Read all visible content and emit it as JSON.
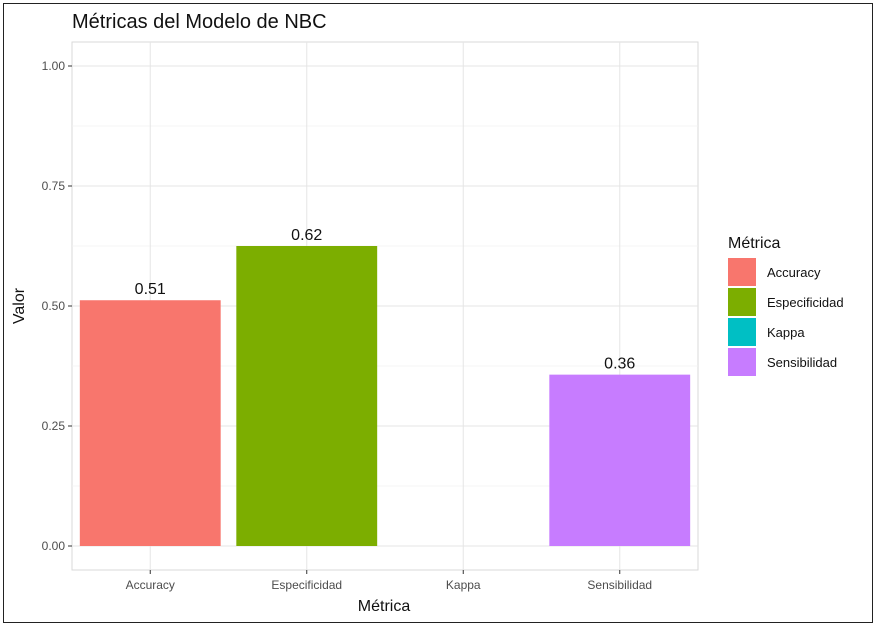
{
  "chart_data": {
    "type": "bar",
    "title": "Métricas del Modelo de NBC",
    "xlabel": "Métrica",
    "ylabel": "Valor",
    "categories": [
      "Accuracy",
      "Especificidad",
      "Kappa",
      "Sensibilidad"
    ],
    "values": [
      0.512,
      0.625,
      0.0,
      0.357
    ],
    "labels": [
      "0.51",
      "0.62",
      "",
      "0.36"
    ],
    "colors": [
      "#F8766D",
      "#7CAE00",
      "#00BFC4",
      "#C77CFF"
    ],
    "ylim": [
      -0.05,
      1.05
    ],
    "yticks": [
      0.0,
      0.25,
      0.5,
      0.75,
      1.0
    ],
    "ytick_labels": [
      "0.00",
      "0.25",
      "0.50",
      "0.75",
      "1.00"
    ],
    "grid": true,
    "legend": {
      "title": "Métrica",
      "position": "right",
      "items": [
        "Accuracy",
        "Especificidad",
        "Kappa",
        "Sensibilidad"
      ]
    }
  }
}
